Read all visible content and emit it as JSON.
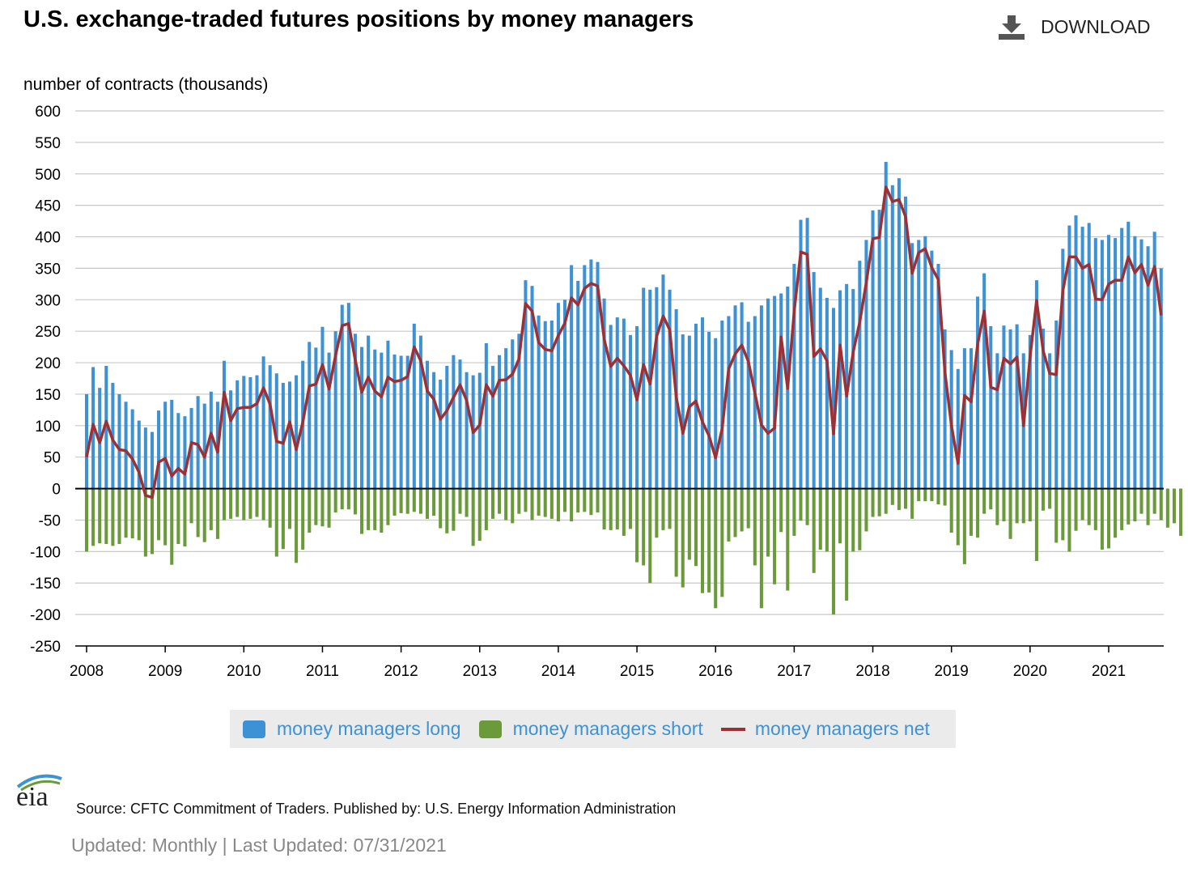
{
  "title": "U.S. exchange-traded futures positions by money managers",
  "download_label": "DOWNLOAD",
  "source_text": "Source: CFTC Commitment of Traders. Published by: U.S. Energy Information Administration",
  "updated_text": "Updated: Monthly | Last Updated: 07/31/2021",
  "logo_text": "eia",
  "colors": {
    "long": "#3d92d5",
    "short": "#6a9a3a",
    "net": "#9b3136",
    "legend_text": "#3d92d5"
  },
  "chart_data": {
    "type": "bar",
    "title": "U.S. exchange-traded futures positions by money managers",
    "ylabel": "number of contracts (thousands)",
    "xlabel": "",
    "ylim": [
      -250,
      600
    ],
    "yticks": [
      600,
      550,
      500,
      450,
      400,
      350,
      300,
      250,
      200,
      150,
      100,
      50,
      0,
      -50,
      -100,
      -150,
      -200,
      -250
    ],
    "xticks": [
      "2008",
      "2009",
      "2010",
      "2011",
      "2012",
      "2013",
      "2014",
      "2015",
      "2016",
      "2017",
      "2018",
      "2019",
      "2020",
      "2021"
    ],
    "start": "2008-01",
    "frequency": "monthly",
    "legend": [
      "money managers long",
      "money managers short",
      "money managers net"
    ],
    "legend_position": "bottom",
    "grid": true,
    "series": [
      {
        "name": "money managers long",
        "type": "bar",
        "values": [
          150,
          193,
          160,
          195,
          168,
          150,
          138,
          126,
          108,
          97,
          90,
          124,
          138,
          141,
          120,
          115,
          128,
          147,
          135,
          154,
          138,
          203,
          156,
          172,
          179,
          177,
          180,
          210,
          196,
          183,
          168,
          170,
          180,
          203,
          233,
          224,
          257,
          216,
          250,
          292,
          295,
          246,
          225,
          243,
          221,
          216,
          235,
          213,
          211,
          211,
          262,
          243,
          203,
          185,
          173,
          195,
          212,
          205,
          185,
          180,
          184,
          231,
          195,
          212,
          223,
          237,
          246,
          331,
          322,
          275,
          266,
          267,
          295,
          300,
          355,
          330,
          355,
          364,
          360,
          302,
          260,
          272,
          270,
          244,
          258,
          319,
          316,
          320,
          340,
          316,
          285,
          245,
          243,
          262,
          272,
          249,
          239,
          267,
          274,
          291,
          296,
          265,
          274,
          291,
          302,
          306,
          310,
          321,
          357,
          427,
          430,
          344,
          319,
          303,
          287,
          315,
          325,
          317,
          362,
          395,
          442,
          443,
          519,
          482,
          493,
          464,
          390,
          395,
          401,
          378,
          357,
          253,
          220,
          190,
          223,
          223,
          305,
          342,
          258,
          215,
          259,
          253,
          261,
          215,
          244,
          331,
          254,
          215,
          267,
          381,
          418,
          434,
          416,
          422,
          398,
          395,
          403,
          398,
          414,
          424,
          401,
          396,
          385,
          408,
          350
        ]
      },
      {
        "name": "money managers short",
        "type": "bar",
        "values": [
          -100,
          -91,
          -87,
          -88,
          -91,
          -88,
          -78,
          -79,
          -82,
          -108,
          -104,
          -82,
          -90,
          -121,
          -88,
          -92,
          -55,
          -77,
          -85,
          -66,
          -80,
          -50,
          -48,
          -45,
          -50,
          -48,
          -45,
          -50,
          -62,
          -108,
          -96,
          -64,
          -118,
          -97,
          -70,
          -58,
          -60,
          -62,
          -38,
          -33,
          -33,
          -41,
          -72,
          -66,
          -66,
          -70,
          -58,
          -43,
          -39,
          -40,
          -37,
          -40,
          -48,
          -43,
          -63,
          -71,
          -67,
          -40,
          -45,
          -91,
          -83,
          -66,
          -48,
          -40,
          -50,
          -55,
          -40,
          -37,
          -50,
          -43,
          -45,
          -48,
          -52,
          -37,
          -52,
          -38,
          -37,
          -42,
          -38,
          -65,
          -66,
          -65,
          -75,
          -64,
          -117,
          -122,
          -150,
          -78,
          -66,
          -64,
          -140,
          -157,
          -113,
          -123,
          -166,
          -165,
          -190,
          -172,
          -84,
          -77,
          -68,
          -63,
          -122,
          -190,
          -108,
          -152,
          -69,
          -162,
          -75,
          -51,
          -58,
          -134,
          -97,
          -100,
          -200,
          -87,
          -178,
          -100,
          -98,
          -68,
          -45,
          -44,
          -40,
          -26,
          -34,
          -32,
          -48,
          -20,
          -20,
          -20,
          -25,
          -27,
          -70,
          -90,
          -120,
          -75,
          -78,
          -40,
          -33,
          -58,
          -52,
          -80,
          -55,
          -55,
          -52,
          -115,
          -35,
          -32,
          -86,
          -82,
          -100,
          -67,
          -50,
          -58,
          -66,
          -97,
          -95,
          -78,
          -66,
          -57,
          -52,
          -40,
          -58,
          -40,
          -50,
          -62,
          -55,
          -75
        ]
      },
      {
        "name": "money managers net",
        "type": "line",
        "values": [
          50,
          102,
          73,
          107,
          77,
          62,
          60,
          47,
          26,
          -11,
          -14,
          42,
          48,
          20,
          32,
          23,
          73,
          70,
          50,
          88,
          58,
          153,
          108,
          127,
          129,
          129,
          135,
          160,
          134,
          75,
          72,
          106,
          62,
          106,
          163,
          166,
          197,
          158,
          212,
          259,
          262,
          205,
          153,
          177,
          155,
          146,
          177,
          170,
          172,
          178,
          225,
          203,
          155,
          142,
          110,
          124,
          145,
          165,
          140,
          89,
          101,
          165,
          147,
          172,
          173,
          182,
          206,
          294,
          282,
          232,
          221,
          219,
          243,
          263,
          303,
          292,
          318,
          326,
          322,
          237,
          194,
          207,
          195,
          180,
          141,
          197,
          166,
          242,
          274,
          252,
          145,
          88,
          130,
          139,
          106,
          84,
          49,
          95,
          190,
          214,
          228,
          202,
          152,
          101,
          88,
          96,
          241,
          159,
          282,
          376,
          372,
          210,
          222,
          203,
          87,
          228,
          147,
          217,
          264,
          327,
          397,
          399,
          479,
          456,
          459,
          432,
          342,
          375,
          381,
          351,
          332,
          185,
          100,
          40,
          148,
          138,
          230,
          282,
          161,
          157,
          207,
          198,
          209,
          100,
          209,
          299,
          219,
          183,
          181,
          314,
          368,
          368,
          350,
          356,
          301,
          300,
          325,
          331,
          331,
          368,
          343,
          356,
          323,
          353,
          275
        ]
      }
    ]
  }
}
